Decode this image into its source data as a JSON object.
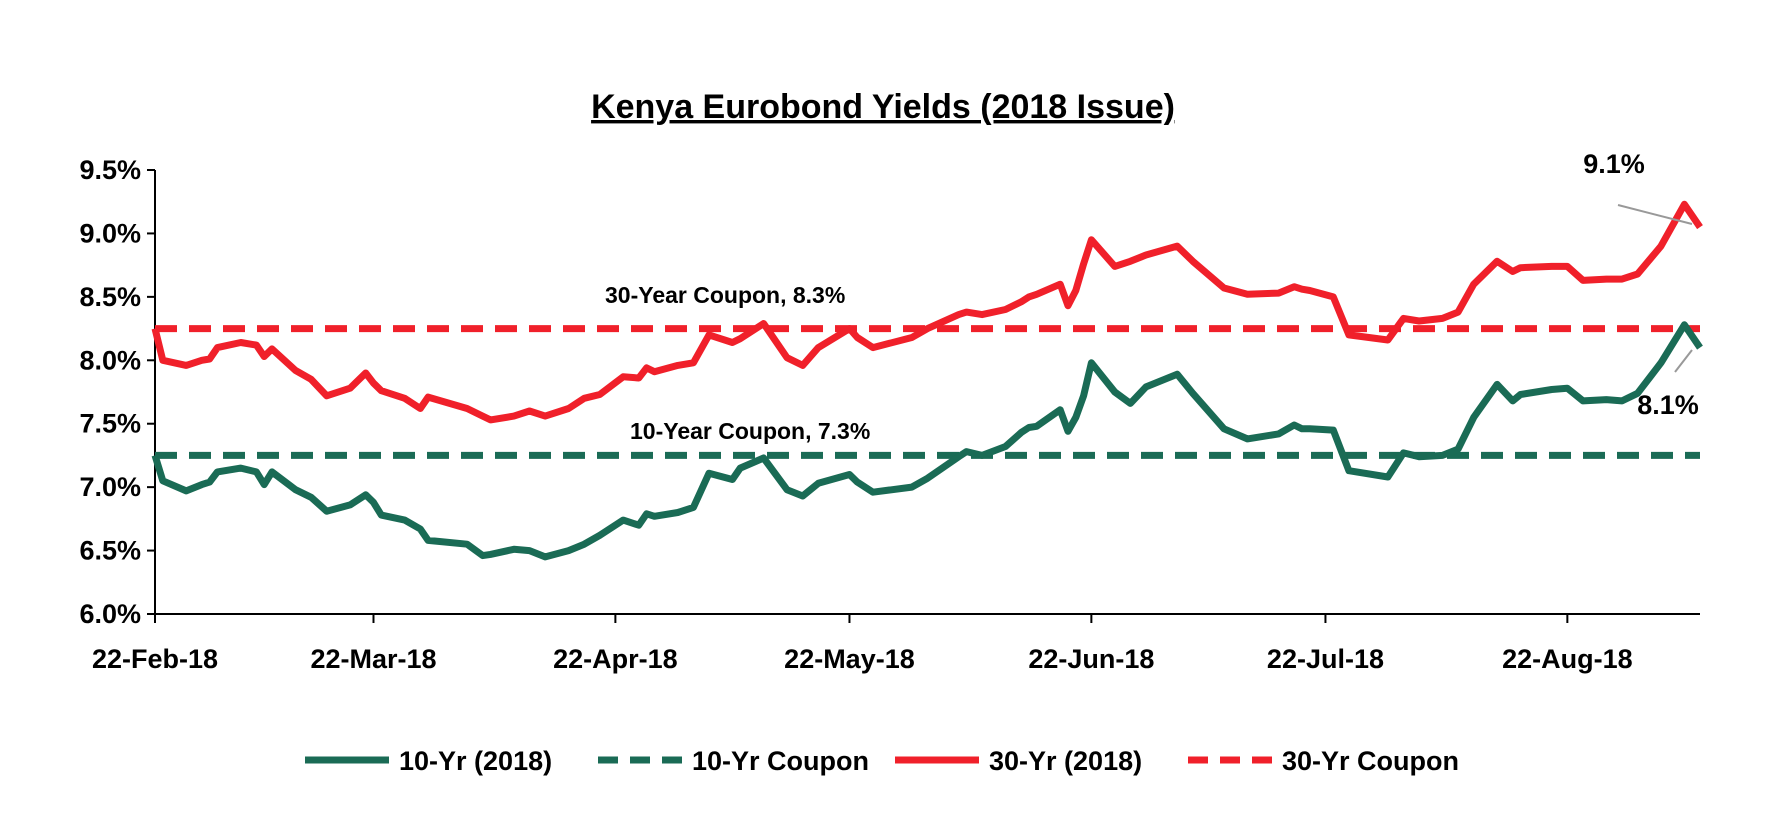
{
  "chart_data": {
    "type": "line",
    "title": "Kenya Eurobond Yields (2018 Issue)",
    "xlabel": "",
    "ylabel": "",
    "ylim": [
      6.0,
      9.5
    ],
    "y_ticks": [
      "9.5%",
      "9.0%",
      "8.5%",
      "8.0%",
      "7.5%",
      "7.0%",
      "6.5%",
      "6.0%"
    ],
    "x_ticks": [
      {
        "label": "22-Feb-18",
        "date": "2018-02-22"
      },
      {
        "label": "22-Mar-18",
        "date": "2018-03-22"
      },
      {
        "label": "22-Apr-18",
        "date": "2018-04-22"
      },
      {
        "label": "22-May-18",
        "date": "2018-05-22"
      },
      {
        "label": "22-Jun-18",
        "date": "2018-06-22"
      },
      {
        "label": "22-Jul-18",
        "date": "2018-07-22"
      },
      {
        "label": "22-Aug-18",
        "date": "2018-08-22"
      }
    ],
    "xlim": [
      "2018-02-22",
      "2018-09-08"
    ],
    "grid": false,
    "legend_position": "bottom",
    "colors": {
      "ten_year": "#1a6b55",
      "thirty_year": "#f0202a"
    },
    "series": [
      {
        "name": "10-Yr (2018)",
        "style": "solid",
        "color": "#1a6b55",
        "x": [
          "2018-02-22",
          "2018-02-23",
          "2018-02-26",
          "2018-02-28",
          "2018-03-01",
          "2018-03-02",
          "2018-03-05",
          "2018-03-07",
          "2018-03-08",
          "2018-03-09",
          "2018-03-12",
          "2018-03-14",
          "2018-03-16",
          "2018-03-19",
          "2018-03-21",
          "2018-03-22",
          "2018-03-23",
          "2018-03-26",
          "2018-03-28",
          "2018-03-29",
          "2018-04-03",
          "2018-04-05",
          "2018-04-06",
          "2018-04-09",
          "2018-04-11",
          "2018-04-13",
          "2018-04-16",
          "2018-04-18",
          "2018-04-20",
          "2018-04-23",
          "2018-04-25",
          "2018-04-26",
          "2018-04-27",
          "2018-04-30",
          "2018-05-02",
          "2018-05-04",
          "2018-05-07",
          "2018-05-08",
          "2018-05-11",
          "2018-05-14",
          "2018-05-16",
          "2018-05-18",
          "2018-05-22",
          "2018-05-23",
          "2018-05-25",
          "2018-05-30",
          "2018-06-01",
          "2018-06-05",
          "2018-06-06",
          "2018-06-08",
          "2018-06-11",
          "2018-06-13",
          "2018-06-14",
          "2018-06-15",
          "2018-06-18",
          "2018-06-19",
          "2018-06-20",
          "2018-06-21",
          "2018-06-22",
          "2018-06-25",
          "2018-06-27",
          "2018-06-29",
          "2018-07-03",
          "2018-07-05",
          "2018-07-09",
          "2018-07-12",
          "2018-07-16",
          "2018-07-18",
          "2018-07-19",
          "2018-07-20",
          "2018-07-23",
          "2018-07-25",
          "2018-07-30",
          "2018-08-01",
          "2018-08-03",
          "2018-08-06",
          "2018-08-08",
          "2018-08-10",
          "2018-08-13",
          "2018-08-15",
          "2018-08-16",
          "2018-08-20",
          "2018-08-22",
          "2018-08-24",
          "2018-08-27",
          "2018-08-29",
          "2018-08-31",
          "2018-09-03",
          "2018-09-06",
          "2018-09-08"
        ],
        "y": [
          7.25,
          7.05,
          6.97,
          7.02,
          7.04,
          7.12,
          7.15,
          7.12,
          7.02,
          7.12,
          6.98,
          6.92,
          6.81,
          6.86,
          6.94,
          6.88,
          6.78,
          6.74,
          6.67,
          6.58,
          6.55,
          6.46,
          6.47,
          6.51,
          6.5,
          6.45,
          6.5,
          6.55,
          6.62,
          6.74,
          6.7,
          6.79,
          6.77,
          6.8,
          6.84,
          7.11,
          7.06,
          7.15,
          7.23,
          6.98,
          6.93,
          7.03,
          7.1,
          7.04,
          6.96,
          7.0,
          7.07,
          7.24,
          7.28,
          7.25,
          7.32,
          7.43,
          7.47,
          7.48,
          7.61,
          7.44,
          7.55,
          7.72,
          7.98,
          7.75,
          7.66,
          7.79,
          7.89,
          7.74,
          7.46,
          7.38,
          7.42,
          7.49,
          7.46,
          7.46,
          7.45,
          7.13,
          7.08,
          7.27,
          7.24,
          7.25,
          7.3,
          7.55,
          7.81,
          7.68,
          7.73,
          7.77,
          7.78,
          7.68,
          7.69,
          7.68,
          7.74,
          7.98,
          8.28,
          8.1
        ]
      },
      {
        "name": "10-Yr Coupon",
        "style": "dashed",
        "color": "#1a6b55",
        "x": [
          "2018-02-22",
          "2018-09-08"
        ],
        "y": [
          7.25,
          7.25
        ]
      },
      {
        "name": "30-Yr (2018)",
        "style": "solid",
        "color": "#f0202a",
        "x": [
          "2018-02-22",
          "2018-02-23",
          "2018-02-26",
          "2018-02-28",
          "2018-03-01",
          "2018-03-02",
          "2018-03-05",
          "2018-03-07",
          "2018-03-08",
          "2018-03-09",
          "2018-03-12",
          "2018-03-14",
          "2018-03-16",
          "2018-03-19",
          "2018-03-21",
          "2018-03-22",
          "2018-03-23",
          "2018-03-26",
          "2018-03-28",
          "2018-03-29",
          "2018-04-03",
          "2018-04-05",
          "2018-04-06",
          "2018-04-09",
          "2018-04-11",
          "2018-04-13",
          "2018-04-16",
          "2018-04-18",
          "2018-04-20",
          "2018-04-23",
          "2018-04-25",
          "2018-04-26",
          "2018-04-27",
          "2018-04-30",
          "2018-05-02",
          "2018-05-04",
          "2018-05-07",
          "2018-05-08",
          "2018-05-11",
          "2018-05-14",
          "2018-05-16",
          "2018-05-18",
          "2018-05-22",
          "2018-05-23",
          "2018-05-25",
          "2018-05-30",
          "2018-06-01",
          "2018-06-05",
          "2018-06-06",
          "2018-06-08",
          "2018-06-11",
          "2018-06-13",
          "2018-06-14",
          "2018-06-15",
          "2018-06-18",
          "2018-06-19",
          "2018-06-20",
          "2018-06-21",
          "2018-06-22",
          "2018-06-25",
          "2018-06-27",
          "2018-06-29",
          "2018-07-03",
          "2018-07-05",
          "2018-07-09",
          "2018-07-12",
          "2018-07-16",
          "2018-07-18",
          "2018-07-19",
          "2018-07-20",
          "2018-07-23",
          "2018-07-25",
          "2018-07-30",
          "2018-08-01",
          "2018-08-03",
          "2018-08-06",
          "2018-08-08",
          "2018-08-10",
          "2018-08-13",
          "2018-08-15",
          "2018-08-16",
          "2018-08-20",
          "2018-08-22",
          "2018-08-24",
          "2018-08-27",
          "2018-08-29",
          "2018-08-31",
          "2018-09-03",
          "2018-09-06",
          "2018-09-08"
        ],
        "y": [
          8.25,
          8.0,
          7.96,
          8.0,
          8.01,
          8.1,
          8.14,
          8.12,
          8.03,
          8.09,
          7.92,
          7.85,
          7.72,
          7.78,
          7.9,
          7.82,
          7.76,
          7.7,
          7.62,
          7.71,
          7.62,
          7.56,
          7.53,
          7.56,
          7.6,
          7.56,
          7.62,
          7.7,
          7.73,
          7.87,
          7.86,
          7.94,
          7.91,
          7.96,
          7.98,
          8.2,
          8.14,
          8.17,
          8.29,
          8.02,
          7.96,
          8.1,
          8.25,
          8.18,
          8.1,
          8.18,
          8.25,
          8.36,
          8.38,
          8.36,
          8.4,
          8.46,
          8.5,
          8.52,
          8.6,
          8.43,
          8.55,
          8.76,
          8.95,
          8.74,
          8.78,
          8.83,
          8.9,
          8.78,
          8.57,
          8.52,
          8.53,
          8.58,
          8.56,
          8.55,
          8.5,
          8.2,
          8.16,
          8.33,
          8.31,
          8.33,
          8.38,
          8.6,
          8.78,
          8.7,
          8.73,
          8.74,
          8.74,
          8.63,
          8.64,
          8.64,
          8.68,
          8.9,
          9.23,
          9.05
        ]
      },
      {
        "name": "30-Yr Coupon",
        "style": "dashed",
        "color": "#f0202a",
        "x": [
          "2018-02-22",
          "2018-09-08"
        ],
        "y": [
          8.25,
          8.25
        ]
      }
    ],
    "annotations": {
      "thirty_coupon": "30-Year Coupon, 8.3%",
      "ten_coupon": "10-Year Coupon, 7.3%",
      "end_thirty": "9.1%",
      "end_ten": "8.1%"
    }
  }
}
